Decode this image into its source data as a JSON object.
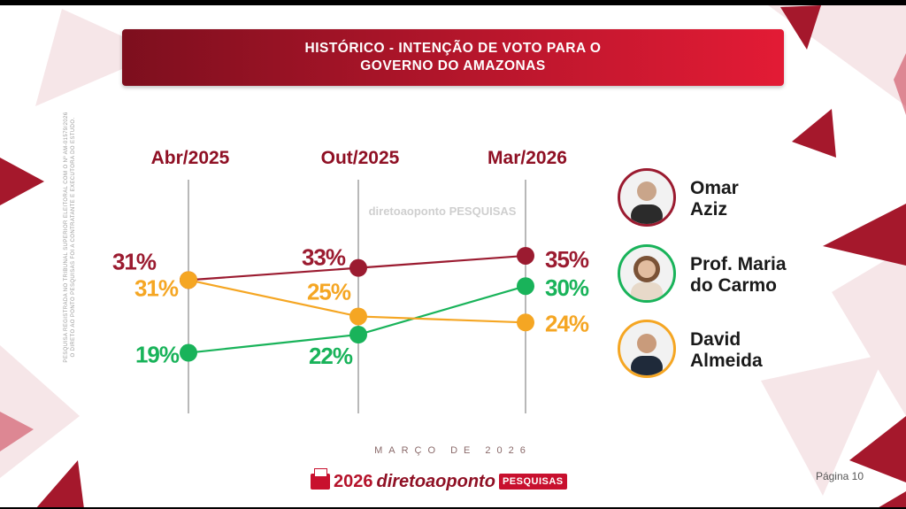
{
  "title_line1": "HISTÓRICO - INTENÇÃO DE VOTO PARA O",
  "title_line2": "GOVERNO DO AMAZONAS",
  "side_note_line1": "PESQUISA REGISTRADA NO TRIBUNAL SUPERIOR ELEITORAL COM O Nº AM-01579/2026",
  "side_note_line2": "O DIRETO AO PONTO PESQUISAS FOI A CONTRATANTE E EXECUTORA DO ESTUDO.",
  "watermark": "diretoaoponto PESQUISAS",
  "month_label": "MARÇO DE 2026",
  "brand": {
    "year": "2026",
    "name": "diretoaoponto",
    "tag": "PESQUISAS"
  },
  "page_label": "Página 10",
  "colors": {
    "title_bar": "#b8162c",
    "period_labels": "#8f1024",
    "decoration": "#a5182c"
  },
  "chart_data": {
    "type": "line",
    "categories": [
      "Abr/2025",
      "Out/2025",
      "Mar/2026"
    ],
    "series": [
      {
        "name": "Omar Aziz",
        "values": [
          31,
          33,
          35
        ],
        "labels": [
          "31%",
          "33%",
          "35%"
        ],
        "color": "#9b1b30"
      },
      {
        "name": "Prof. Maria do Carmo",
        "values": [
          19,
          22,
          30
        ],
        "labels": [
          "19%",
          "22%",
          "30%"
        ],
        "color": "#19b35a"
      },
      {
        "name": "David Almeida",
        "values": [
          31,
          25,
          24
        ],
        "labels": [
          "31%",
          "25%",
          "24%"
        ],
        "color": "#f5a623"
      }
    ],
    "legend_placement": "right"
  },
  "candidates": [
    {
      "name_line1": "Omar",
      "name_line2": "Aziz",
      "ring": "#9b1b30",
      "avatar_icon": "person-photo-icon"
    },
    {
      "name_line1": "Prof. Maria",
      "name_line2": "do Carmo",
      "ring": "#19b35a",
      "avatar_icon": "person-photo-icon"
    },
    {
      "name_line1": "David",
      "name_line2": "Almeida",
      "ring": "#f5a623",
      "avatar_icon": "person-photo-icon"
    }
  ]
}
